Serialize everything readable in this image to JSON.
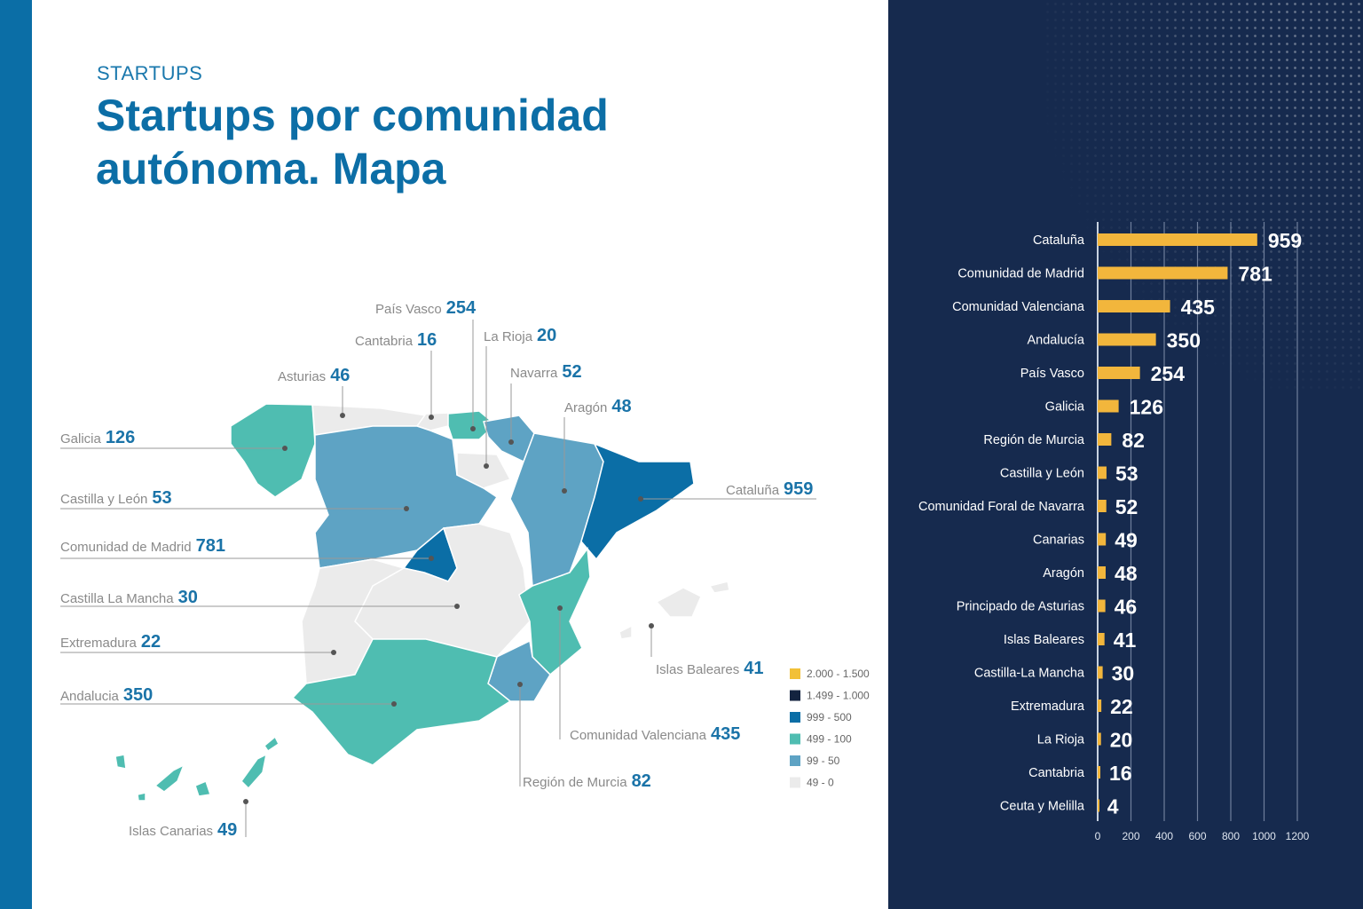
{
  "header": {
    "kicker": "STARTUPS",
    "title": "Startups por comunidad autónoma. Mapa"
  },
  "colors": {
    "strip": "#0b6ea6",
    "panel": "#162a4e",
    "bar": "#f2b63c",
    "c_2000_1500": "#f2c037",
    "c_1499_1000": "#13233f",
    "c_999_500": "#0b6ea6",
    "c_499_100": "#4fbdb1",
    "c_99_50": "#5ea3c4",
    "c_49_0": "#ebebeb"
  },
  "map": {
    "legend": [
      {
        "label": "2.000 - 1.500",
        "color": "#f2c037"
      },
      {
        "label": "1.499 - 1.000",
        "color": "#13233f"
      },
      {
        "label": "999 - 500",
        "color": "#0b6ea6"
      },
      {
        "label": "499 - 100",
        "color": "#4fbdb1"
      },
      {
        "label": "99 - 50",
        "color": "#5ea3c4"
      },
      {
        "label": "49 - 0",
        "color": "#ebebeb"
      }
    ],
    "labels": [
      {
        "name": "País Vasco",
        "value": "254"
      },
      {
        "name": "Cantabria",
        "value": "16"
      },
      {
        "name": "La Rioja",
        "value": "20"
      },
      {
        "name": "Asturias",
        "value": "46"
      },
      {
        "name": "Navarra",
        "value": "52"
      },
      {
        "name": "Aragón",
        "value": "48"
      },
      {
        "name": "Galicia",
        "value": "126"
      },
      {
        "name": "Cataluña",
        "value": "959"
      },
      {
        "name": "Castilla y León",
        "value": "53"
      },
      {
        "name": "Comunidad de Madrid",
        "value": "781"
      },
      {
        "name": "Castilla La Mancha",
        "value": "30"
      },
      {
        "name": "Extremadura",
        "value": "22"
      },
      {
        "name": "Islas Baleares",
        "value": "41"
      },
      {
        "name": "Andalucia",
        "value": "350"
      },
      {
        "name": "Comunidad Valenciana",
        "value": "435"
      },
      {
        "name": "Región de Murcia",
        "value": "82"
      },
      {
        "name": "Islas Canarias",
        "value": "49"
      }
    ]
  },
  "chart_data": {
    "type": "bar",
    "orientation": "horizontal",
    "categories": [
      "Cataluña",
      "Comunidad de Madrid",
      "Comunidad Valenciana",
      "Andalucía",
      "País Vasco",
      "Galicia",
      "Región de Murcia",
      "Castilla y León",
      "Comunidad Foral de Navarra",
      "Canarias",
      "Aragón",
      "Principado de Asturias",
      "Islas Baleares",
      "Castilla-La Mancha",
      "Extremadura",
      "La Rioja",
      "Cantabria",
      "Ceuta y Melilla"
    ],
    "values": [
      959,
      781,
      435,
      350,
      254,
      126,
      82,
      53,
      52,
      49,
      48,
      46,
      41,
      30,
      22,
      20,
      16,
      4
    ],
    "xlim": [
      0,
      1200
    ],
    "xticks": [
      0,
      200,
      400,
      600,
      800,
      1000,
      1200
    ],
    "grid": true
  }
}
